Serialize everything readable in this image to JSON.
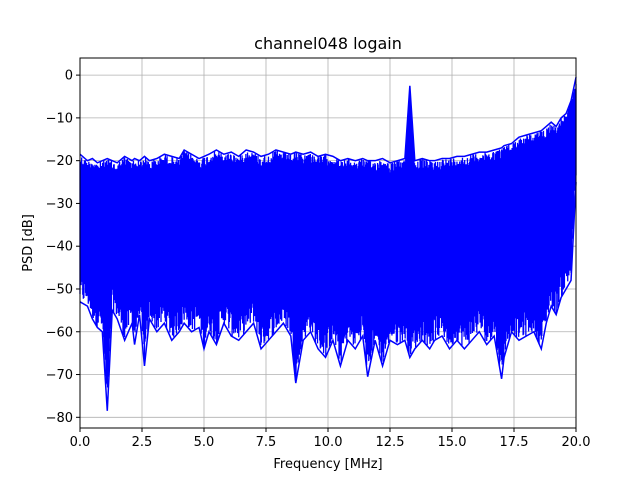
{
  "chart_data": {
    "type": "line",
    "title": "channel048 logain",
    "xlabel": "Frequency [MHz]",
    "ylabel": "PSD [dB]",
    "xlim": [
      0,
      20
    ],
    "ylim": [
      -82.5,
      4
    ],
    "grid": true,
    "legend": "none",
    "x_ticks": [
      0,
      2.5,
      5,
      7.5,
      10,
      12.5,
      15,
      17.5,
      20
    ],
    "x_tick_labels": [
      "0.0",
      "2.5",
      "5.0",
      "7.5",
      "10.0",
      "12.5",
      "15.0",
      "17.5",
      "20.0"
    ],
    "y_ticks": [
      0,
      -10,
      -20,
      -30,
      -40,
      -50,
      -60,
      -70,
      -80
    ],
    "y_tick_labels": [
      "0",
      "−10",
      "−20",
      "−30",
      "−40",
      "−50",
      "−60",
      "−70",
      "−80"
    ],
    "series": [
      {
        "color": "#0000ff",
        "x": [
          0.0,
          0.3,
          0.5,
          0.7,
          0.9,
          1.1,
          1.3,
          1.5,
          1.8,
          2.1,
          2.2,
          2.4,
          2.6,
          2.8,
          3.1,
          3.4,
          3.7,
          4.0,
          4.2,
          4.5,
          4.8,
          5.0,
          5.2,
          5.5,
          5.8,
          6.1,
          6.4,
          6.7,
          7.0,
          7.3,
          7.6,
          7.9,
          8.2,
          8.5,
          8.7,
          9.0,
          9.3,
          9.6,
          9.9,
          10.2,
          10.5,
          10.8,
          11.1,
          11.4,
          11.6,
          11.9,
          12.2,
          12.5,
          12.8,
          13.1,
          13.3,
          13.5,
          13.8,
          14.1,
          14.3,
          14.6,
          14.9,
          15.2,
          15.5,
          15.8,
          16.1,
          16.4,
          16.7,
          17.0,
          17.1,
          17.4,
          17.7,
          18.0,
          18.3,
          18.6,
          18.8,
          19.0,
          19.2,
          19.4,
          19.6,
          19.8,
          20.0
        ],
        "upper": [
          -18.5,
          -20,
          -19.5,
          -20.5,
          -20,
          -19.5,
          -20,
          -20.5,
          -19,
          -20,
          -19.5,
          -20,
          -19,
          -20,
          -19.5,
          -18.5,
          -19,
          -19.5,
          -17.5,
          -18.5,
          -19.5,
          -19,
          -18.5,
          -17.5,
          -18.5,
          -18,
          -19,
          -17.5,
          -18,
          -19,
          -18.5,
          -17.5,
          -18,
          -18.5,
          -18,
          -18.5,
          -18,
          -19,
          -18.5,
          -19,
          -20,
          -19.5,
          -20,
          -19.5,
          -20,
          -20,
          -19.5,
          -20.5,
          -20,
          -19.5,
          -2.5,
          -20,
          -19.5,
          -20,
          -20,
          -19.5,
          -19.5,
          -19,
          -19,
          -18.5,
          -18,
          -18,
          -17.5,
          -17,
          -16.5,
          -16,
          -14.5,
          -14,
          -13.5,
          -13,
          -12,
          -11,
          -12,
          -10,
          -9,
          -6,
          -0.5
        ],
        "lower": [
          -53,
          -54,
          -57,
          -59,
          -60,
          -78.5,
          -55,
          -57,
          -62,
          -58,
          -63,
          -56,
          -68,
          -57,
          -60,
          -58,
          -62,
          -60,
          -58,
          -60,
          -59,
          -64,
          -60,
          -63,
          -58,
          -61,
          -62,
          -60,
          -58,
          -64,
          -62,
          -60,
          -58,
          -61,
          -72,
          -62,
          -60,
          -64,
          -66,
          -62,
          -68,
          -62,
          -64,
          -61,
          -70.5,
          -62,
          -68,
          -62,
          -63,
          -62,
          -66,
          -64,
          -62,
          -64,
          -62,
          -61,
          -64,
          -62,
          -64,
          -62,
          -60,
          -63,
          -61,
          -71,
          -66,
          -60,
          -62,
          -61,
          -60,
          -64,
          -58,
          -54,
          -56,
          -52,
          -50,
          -48,
          -25
        ]
      }
    ]
  }
}
